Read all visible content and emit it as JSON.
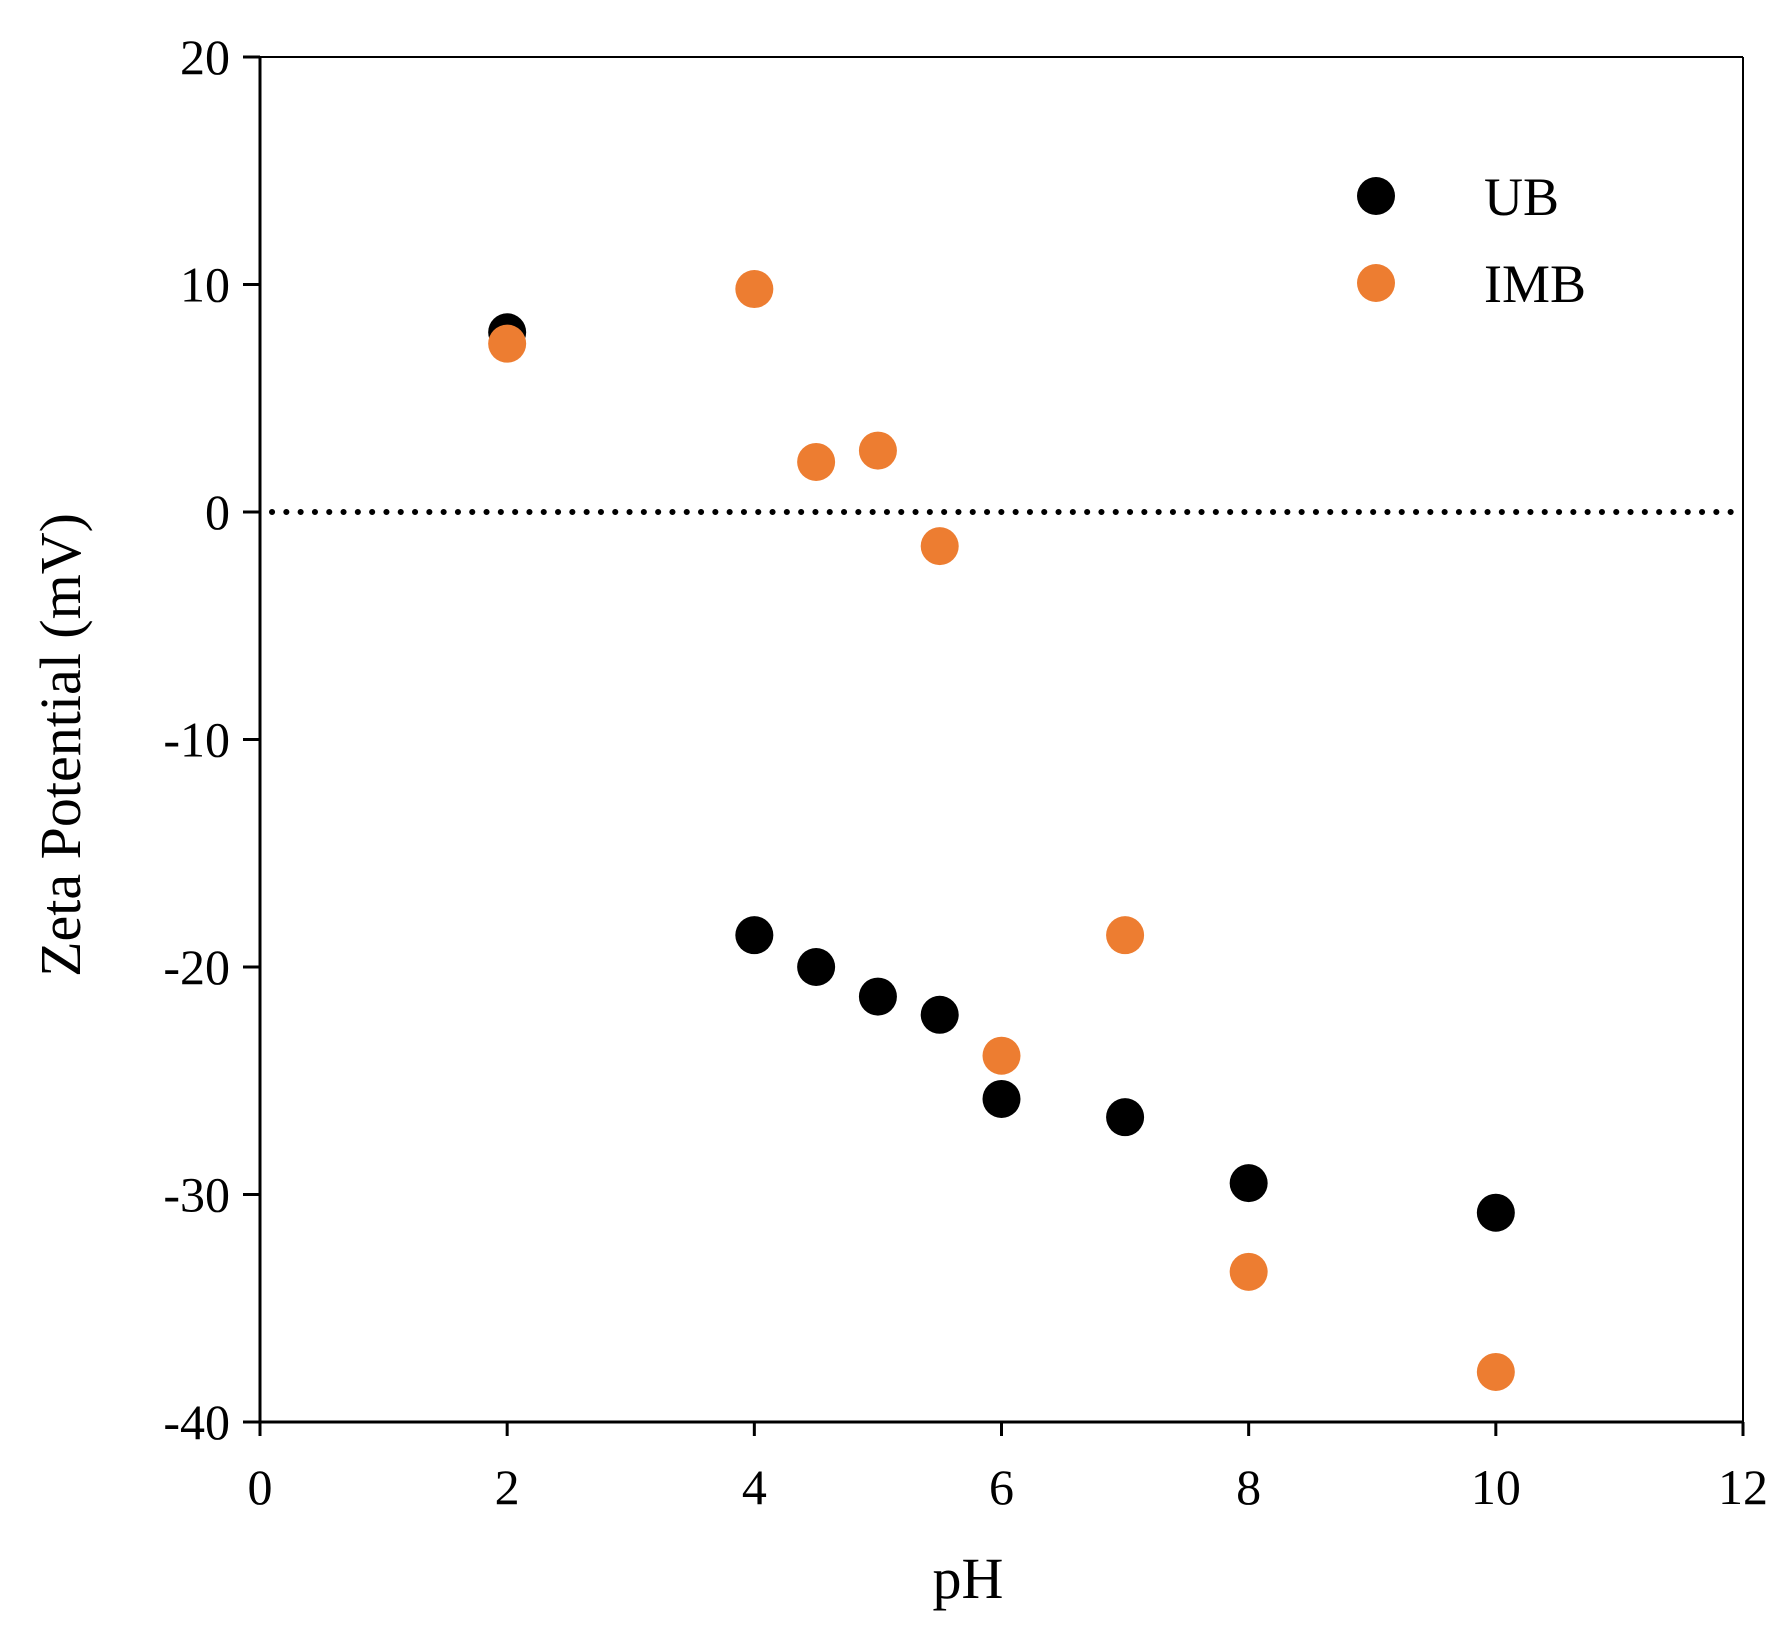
{
  "chart_data": {
    "type": "scatter",
    "title": "",
    "xlabel": "pH",
    "ylabel": "Zeta Potential (mV)",
    "xlim": [
      0,
      12
    ],
    "ylim": [
      -40,
      20
    ],
    "x_ticks": [
      0,
      2,
      4,
      6,
      8,
      10,
      12
    ],
    "y_ticks": [
      20,
      10,
      0,
      -10,
      -20,
      -30,
      -40
    ],
    "x_tick_labels": [
      "0",
      "2",
      "4",
      "6",
      "8",
      "10",
      "12"
    ],
    "y_tick_labels": [
      "20",
      "10",
      "0",
      "-10",
      "-20",
      "-30",
      "-40"
    ],
    "grid": false,
    "reference_line": {
      "y": 0,
      "style": "dotted"
    },
    "legend_position": "top-right",
    "series": [
      {
        "name": "UB",
        "color": "#000000",
        "points": [
          {
            "x": 2,
            "y": 7.9
          },
          {
            "x": 4,
            "y": -18.6
          },
          {
            "x": 4.5,
            "y": -20.0
          },
          {
            "x": 5,
            "y": -21.3
          },
          {
            "x": 5.5,
            "y": -22.1
          },
          {
            "x": 6,
            "y": -25.8
          },
          {
            "x": 7,
            "y": -26.6
          },
          {
            "x": 8,
            "y": -29.5
          },
          {
            "x": 10,
            "y": -30.8
          }
        ]
      },
      {
        "name": "IMB",
        "color": "#ED7D31",
        "points": [
          {
            "x": 2,
            "y": 7.4
          },
          {
            "x": 4,
            "y": 9.8
          },
          {
            "x": 4.5,
            "y": 2.2
          },
          {
            "x": 5,
            "y": 2.7
          },
          {
            "x": 5.5,
            "y": -1.5
          },
          {
            "x": 6,
            "y": -23.9
          },
          {
            "x": 7,
            "y": -18.6
          },
          {
            "x": 8,
            "y": -33.4
          },
          {
            "x": 10,
            "y": -37.8
          }
        ]
      }
    ]
  }
}
